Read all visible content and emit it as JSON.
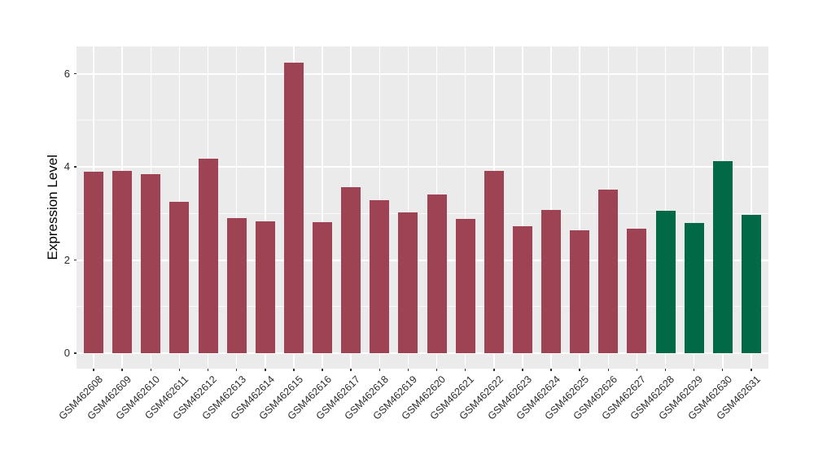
{
  "chart_data": {
    "type": "bar",
    "title": "",
    "xlabel": "",
    "ylabel": "Expression Level",
    "categories": [
      "GSM462608",
      "GSM462609",
      "GSM462610",
      "GSM462611",
      "GSM462612",
      "GSM462613",
      "GSM462614",
      "GSM462615",
      "GSM462616",
      "GSM462617",
      "GSM462618",
      "GSM462619",
      "GSM462620",
      "GSM462621",
      "GSM462622",
      "GSM462623",
      "GSM462624",
      "GSM462625",
      "GSM462626",
      "GSM462627",
      "GSM462628",
      "GSM462629",
      "GSM462630",
      "GSM462631"
    ],
    "values": [
      3.89,
      3.92,
      3.85,
      3.25,
      4.17,
      2.9,
      2.83,
      6.24,
      2.82,
      3.56,
      3.29,
      3.02,
      3.41,
      2.89,
      3.91,
      2.72,
      3.07,
      2.63,
      3.51,
      2.68,
      3.05,
      2.79,
      4.12,
      2.97
    ],
    "colors": [
      "#9D4353",
      "#9D4353",
      "#9D4353",
      "#9D4353",
      "#9D4353",
      "#9D4353",
      "#9D4353",
      "#9D4353",
      "#9D4353",
      "#9D4353",
      "#9D4353",
      "#9D4353",
      "#9D4353",
      "#9D4353",
      "#9D4353",
      "#9D4353",
      "#9D4353",
      "#9D4353",
      "#9D4353",
      "#9D4353",
      "#026946",
      "#026946",
      "#026946",
      "#026946"
    ],
    "group_colors": {
      "maroon_group": "#9D4353",
      "green_group": "#026946"
    },
    "yticks": [
      0,
      2,
      4,
      6
    ],
    "ytick_labels": [
      "0",
      "2",
      "4",
      "6"
    ],
    "yticks_minor": [
      1,
      3,
      5
    ],
    "ylim": [
      0,
      6.57
    ],
    "x_label_angle": 45,
    "legend_position": "none",
    "panel_background": "#EBEBEB",
    "grid_color": "#FFFFFF",
    "grid": "horizontal major+minor, vertical major at each category"
  }
}
